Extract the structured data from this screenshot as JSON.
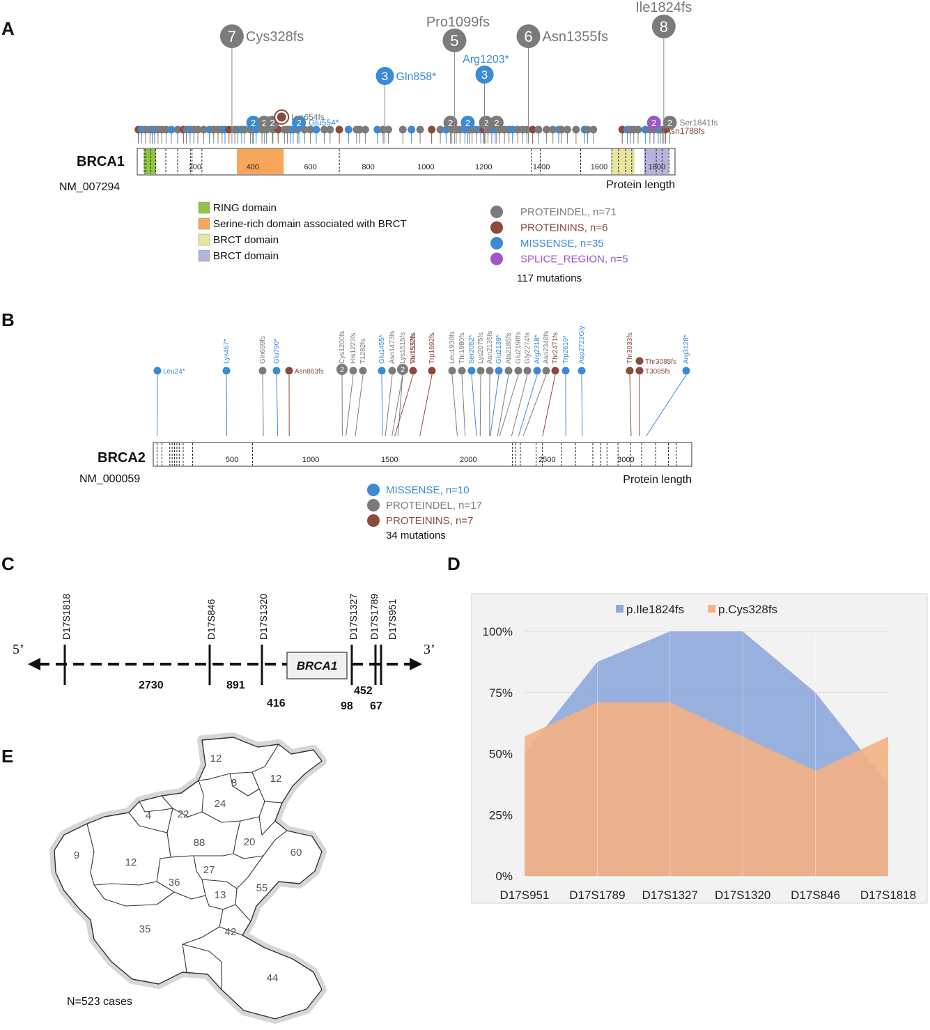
{
  "panels": {
    "a": "A",
    "b": "B",
    "c": "C",
    "d": "D",
    "e": "E"
  },
  "brca1": {
    "gene": "BRCA1",
    "accession": "NM_007294",
    "length_label": "Protein length",
    "protein_length": 1863,
    "ticks": [
      "200",
      "400",
      "600",
      "800",
      "1000",
      "1200",
      "1400",
      "1600",
      "1800"
    ],
    "tick_values": [
      200,
      400,
      600,
      800,
      1000,
      1200,
      1400,
      1600,
      1800
    ],
    "domains": [
      {
        "name": "RING domain",
        "start": 24,
        "end": 64,
        "color": "#8dc63f"
      },
      {
        "name": "Serine-rich domain associated with BRCT",
        "start": 345,
        "end": 507,
        "color": "#f9a65a"
      },
      {
        "name": "BRCT domain",
        "start": 1642,
        "end": 1723,
        "color": "#e6e6a0"
      },
      {
        "name": "BRCT domain",
        "start": 1756,
        "end": 1842,
        "color": "#b4b4dc"
      }
    ],
    "legend": [
      {
        "label": "PROTEINDEL, n=71",
        "color": "#7b7b7b"
      },
      {
        "label": "PROTEININS, n=6",
        "color": "#8b4a3c"
      },
      {
        "label": "MISSENSE, n=35",
        "color": "#3a8ad6"
      },
      {
        "label": "SPLICE_REGION, n=5",
        "color": "#9b59c8"
      }
    ],
    "total": "117 mutations",
    "big_mutations": [
      {
        "label": "Cys328fs",
        "count": "7",
        "pos": 328,
        "color": "#7b7b7b"
      },
      {
        "label": "Pro1099fs",
        "count": "5",
        "pos": 1099,
        "color": "#7b7b7b"
      },
      {
        "label": "Asn1355fs",
        "count": "6",
        "pos": 1355,
        "color": "#7b7b7b"
      },
      {
        "label": "Ile1824fs",
        "count": "8",
        "pos": 1824,
        "color": "#7b7b7b"
      },
      {
        "label": "Gln858*",
        "count": "3",
        "pos": 858,
        "color": "#3a8ad6"
      },
      {
        "label": "Arg1203*",
        "count": "3",
        "pos": 1203,
        "color": "#3a8ad6"
      }
    ],
    "small_labels": [
      {
        "text": "Lys654fs",
        "color": "#7b7b7b"
      },
      {
        "text": "Glu554*",
        "color": "#3a8ad6"
      },
      {
        "text": "Ser1841fs",
        "color": "#7b7b7b"
      },
      {
        "text": "Asn1788fs",
        "color": "#8b4a3c"
      }
    ]
  },
  "brca2": {
    "gene": "BRCA2",
    "accession": "NM_000059",
    "length_label": "Protein length",
    "protein_length": 3418,
    "ticks": [
      "500",
      "1000",
      "1500",
      "2000",
      "2500",
      "3000"
    ],
    "tick_values": [
      500,
      1000,
      1500,
      2000,
      2500,
      3000
    ],
    "legend": [
      {
        "label": "MISSENSE, n=10",
        "color": "#3a8ad6"
      },
      {
        "label": "PROTEINDEL, n=17",
        "color": "#7b7b7b"
      },
      {
        "label": "PROTEININS, n=7",
        "color": "#8b4a3c"
      }
    ],
    "total": "34 mutations",
    "horizontal_mutations": [
      {
        "label": "Leu24*",
        "color": "#3a8ad6"
      },
      {
        "label": "Asn863fs",
        "color": "#8b4a3c"
      },
      {
        "label": "Thr3085fs",
        "color": "#8b4a3c"
      },
      {
        "label": "T3085fs",
        "color": "#8b4a3c"
      }
    ],
    "vertical_mutations": [
      {
        "label": "Lys467*",
        "color": "#3a8ad6"
      },
      {
        "label": "Gln699fs",
        "color": "#7b7b7b"
      },
      {
        "label": "Glu790*",
        "color": "#3a8ad6"
      },
      {
        "label": "Cys1200fs",
        "color": "#7b7b7b"
      },
      {
        "label": "His1223fs",
        "color": "#7b7b7b"
      },
      {
        "label": "T1282fs",
        "color": "#7b7b7b"
      },
      {
        "label": "Glu1455*",
        "color": "#3a8ad6"
      },
      {
        "label": "Asn1473fs",
        "color": "#7b7b7b"
      },
      {
        "label": "Lys1515fs",
        "color": "#7b7b7b"
      },
      {
        "label": "Thr1553fs",
        "color": "#7b7b7b"
      },
      {
        "label": "Val1532fs",
        "color": "#8b4a3c"
      },
      {
        "label": "Trp1692fs",
        "color": "#8b4a3c"
      },
      {
        "label": "Leu1930fs",
        "color": "#7b7b7b"
      },
      {
        "label": "Thr1980fs",
        "color": "#7b7b7b"
      },
      {
        "label": "Ser2052*",
        "color": "#3a8ad6"
      },
      {
        "label": "Lys2075fs",
        "color": "#7b7b7b"
      },
      {
        "label": "Asn2135fs",
        "color": "#7b7b7b"
      },
      {
        "label": "Glu2139*",
        "color": "#3a8ad6"
      },
      {
        "label": "Ala2185fs",
        "color": "#7b7b7b"
      },
      {
        "label": "Glu2198fs",
        "color": "#7b7b7b"
      },
      {
        "label": "Gly2274fs",
        "color": "#7b7b7b"
      },
      {
        "label": "Arg2318*",
        "color": "#3a8ad6"
      },
      {
        "label": "Asn2348fs",
        "color": "#7b7b7b"
      },
      {
        "label": "Thr2471fs",
        "color": "#8b4a3c"
      },
      {
        "label": "Trp2619*",
        "color": "#3a8ad6"
      },
      {
        "label": "Asp2723Gly",
        "color": "#3a8ad6"
      },
      {
        "label": "Thr3033fs",
        "color": "#8b4a3c"
      },
      {
        "label": "Arg3128*",
        "color": "#3a8ad6"
      }
    ]
  },
  "map_c": {
    "five_prime": "5’",
    "three_prime": "3’",
    "gene": "BRCA1",
    "markers": [
      "D17S1818",
      "D17S846",
      "D17S1320",
      "D17S1327",
      "D17S1789",
      "D17S951"
    ],
    "distances": [
      "2730",
      "891",
      "416",
      "98",
      "452",
      "67"
    ]
  },
  "chart_data": {
    "type": "area",
    "title": "",
    "xlabel": "",
    "ylabel": "",
    "categories": [
      "D17S951",
      "D17S1789",
      "D17S1327",
      "D17S1320",
      "D17S846",
      "D17S1818"
    ],
    "series": [
      {
        "name": "p.Ile1824fs",
        "color": "#8ea9db",
        "values": [
          50,
          87.5,
          100,
          100,
          75,
          37.5
        ]
      },
      {
        "name": "p.Cys328fs",
        "color": "#f4b183",
        "values": [
          57,
          71,
          71,
          57,
          43,
          57
        ]
      }
    ],
    "yticks": [
      "0%",
      "25%",
      "50%",
      "75%",
      "100%"
    ],
    "ylim": [
      0,
      100
    ],
    "grid": true,
    "legend": "top"
  },
  "map_e": {
    "regions": [
      "12",
      "8",
      "12",
      "24",
      "4",
      "22",
      "88",
      "20",
      "60",
      "9",
      "12",
      "36",
      "27",
      "13",
      "55",
      "35",
      "42",
      "44"
    ],
    "caption": "N=523 cases"
  }
}
